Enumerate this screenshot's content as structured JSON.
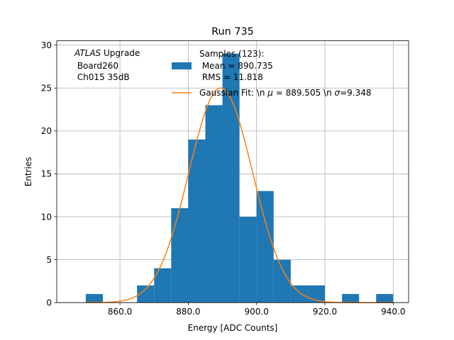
{
  "chart_data": {
    "type": "bar",
    "title": "Run 735",
    "xlabel": "Energy [ADC Counts]",
    "ylabel": "Entries",
    "xlim": [
      841.5,
      944.5
    ],
    "ylim": [
      0,
      30.5
    ],
    "xticks": [
      860.0,
      880.0,
      900.0,
      920.0,
      940.0
    ],
    "xtick_labels": [
      "860.0",
      "880.0",
      "900.0",
      "920.0",
      "940.0"
    ],
    "yticks": [
      0,
      5,
      10,
      15,
      20,
      25,
      30
    ],
    "ytick_labels": [
      "0",
      "5",
      "10",
      "15",
      "20",
      "25",
      "30"
    ],
    "grid": true,
    "legend_position": "upper right",
    "annotation": {
      "line1_italic": "ATLAS",
      "line1_rest": " Upgrade",
      "line2": " Board260",
      "line3": " Ch015 35dB"
    },
    "histogram": {
      "name_lines": [
        "Samples (123):",
        " Mean = 890.735",
        " RMS = 11.818"
      ],
      "color": "#1f77b4",
      "bin_edges": [
        850,
        855,
        860,
        865,
        870,
        875,
        880,
        885,
        890,
        895,
        900,
        905,
        910,
        915,
        920,
        925,
        930,
        935,
        940
      ],
      "values": [
        1,
        0,
        0,
        2,
        4,
        11,
        19,
        23,
        29,
        10,
        13,
        5,
        2,
        2,
        0,
        1,
        0,
        1
      ]
    },
    "fit": {
      "name": "Gaussian Fit: \\n $\\mu$ = 889.505 \\n $\\sigma$=9.348",
      "legend_prefix": "Gaussian Fit: \\n ",
      "legend_mu": "μ",
      "legend_mid": " = 889.505 \\n ",
      "legend_sigma": "σ",
      "legend_suffix": "=9.348",
      "color": "#ff7f0e",
      "mu": 889.505,
      "sigma": 9.348,
      "amplitude": 25.0,
      "x_range": [
        850,
        940
      ]
    }
  }
}
